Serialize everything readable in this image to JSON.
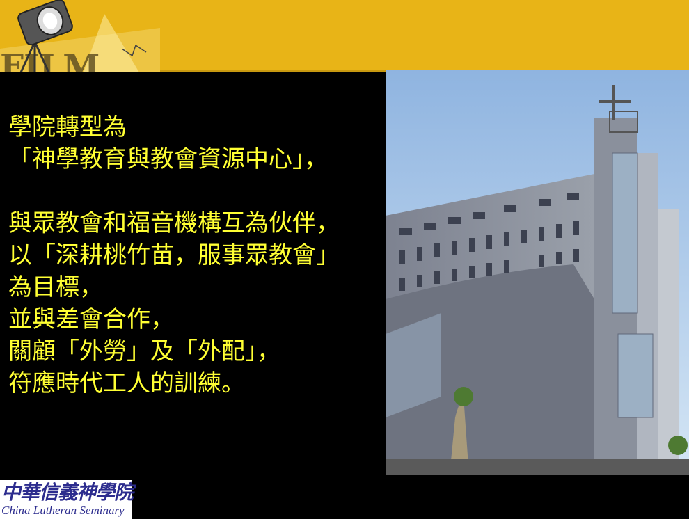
{
  "slide": {
    "lines": [
      "學院轉型為",
      "「神學教育與教會資源中心」，",
      "",
      "與眾教會和福音機構互為伙伴，",
      "以「深耕桃竹苗，服事眾教會」",
      "為目標，",
      "並與差會合作，",
      "關顧「外勞」及「外配」，",
      "符應時代工人的訓練。"
    ]
  },
  "header": {
    "film_letters": "FILM"
  },
  "logo": {
    "chinese": "中華信義神學院",
    "english": "China Lutheran Seminary"
  },
  "colors": {
    "header": "#e8b417",
    "text": "#ffff33",
    "background": "#000000",
    "logo_text": "#2c2c8e"
  }
}
